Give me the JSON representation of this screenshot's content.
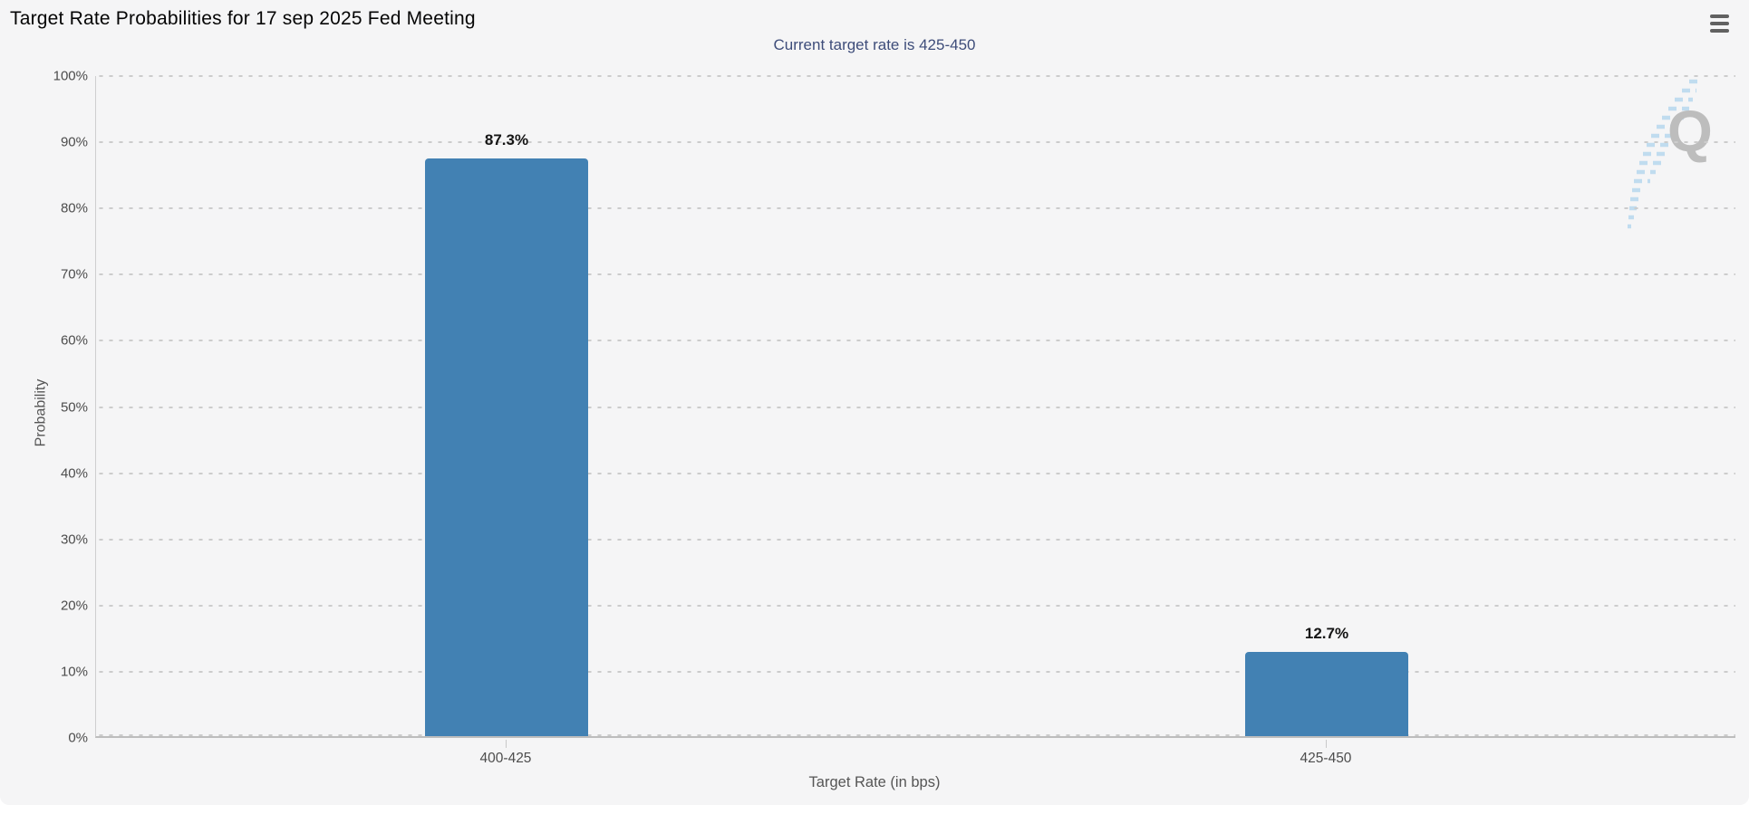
{
  "header": {
    "menu_tooltip": "Chart context menu"
  },
  "chart_data": {
    "type": "bar",
    "title": "Target Rate Probabilities for 17 sep 2025 Fed Meeting",
    "subtitle": "Current target rate is 425-450",
    "categories": [
      "400-425",
      "425-450"
    ],
    "values": [
      87.3,
      12.7
    ],
    "value_labels": [
      "87.3%",
      "12.7%"
    ],
    "xlabel": "Target Rate (in bps)",
    "ylabel": "Probability",
    "ylim": [
      0,
      100
    ],
    "ytick_step": 10,
    "yticks": [
      "0%",
      "10%",
      "20%",
      "30%",
      "40%",
      "50%",
      "60%",
      "70%",
      "80%",
      "90%",
      "100%"
    ],
    "grid": "dotted-horizontal",
    "legend": "none",
    "bar_color": "#4281b3",
    "subtitle_color": "#3e4d7a",
    "watermark_letter": "Q",
    "watermark_swoosh_color": "#b7d8ee"
  }
}
